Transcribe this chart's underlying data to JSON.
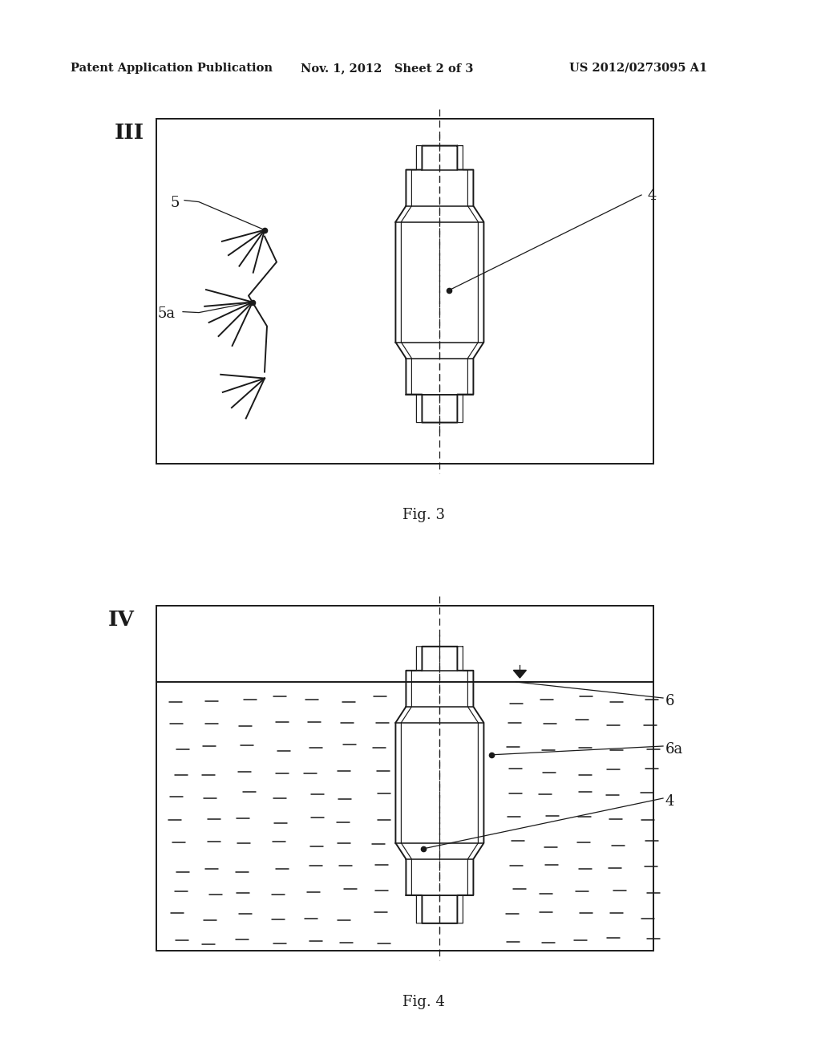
{
  "bg_color": "#ffffff",
  "header_text1": "Patent Application Publication",
  "header_text2": "Nov. 1, 2012   Sheet 2 of 3",
  "header_text3": "US 2012/0273095 A1",
  "fig3_label": "Fig. 3",
  "fig4_label": "Fig. 4",
  "roman3": "III",
  "roman4": "IV",
  "label_4": "4",
  "label_5": "5",
  "label_5a": "5a",
  "label_6": "6",
  "label_6a": "6a",
  "color_main": "#1a1a1a",
  "lw_main": 1.4,
  "lw_thin": 0.9
}
